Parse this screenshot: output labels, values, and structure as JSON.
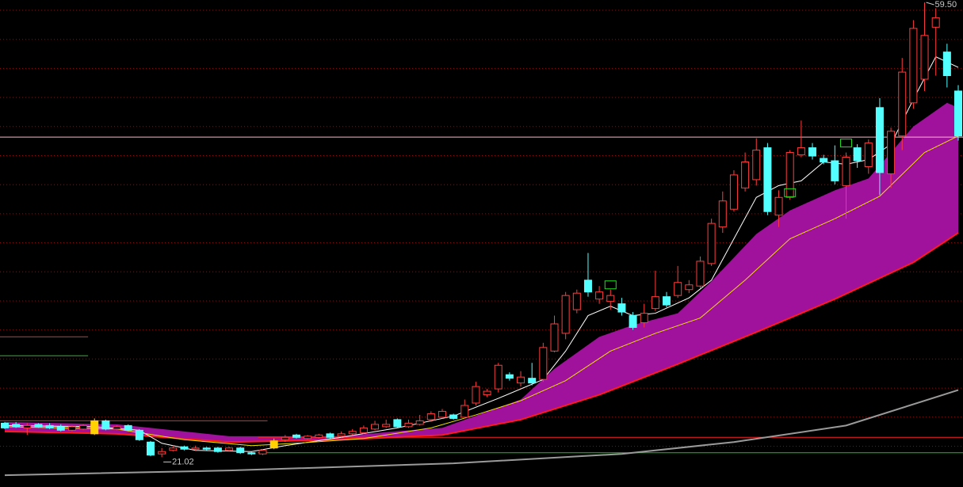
{
  "chart_data": {
    "type": "candlestick",
    "ylim": [
      18.5,
      59.7
    ],
    "up_color": "#ff3c3c",
    "down_color": "#54ffff",
    "highlight_color": "#ffd200",
    "highlight": [
      8,
      24
    ],
    "open": [
      23.9,
      23.8,
      23.5,
      23.8,
      23.7,
      23.6,
      23.3,
      23.4,
      23.0,
      24.1,
      23.4,
      23.7,
      23.3,
      22.3,
      21.3,
      21.6,
      21.9,
      21.7,
      21.8,
      21.8,
      21.6,
      21.8,
      21.4,
      21.3,
      21.8,
      22.5,
      22.9,
      22.6,
      22.7,
      23.0,
      22.8,
      23.0,
      23.1,
      23.4,
      23.6,
      24.2,
      23.6,
      23.8,
      24.2,
      24.4,
      24.6,
      24.4,
      25.6,
      26.3,
      26.8,
      28.0,
      27.3,
      27.7,
      27.6,
      30.0,
      31.5,
      33.5,
      36.0,
      34.4,
      34.2,
      34.0,
      33.0,
      32.4,
      33.6,
      34.6,
      34.7,
      35.2,
      35.5,
      37.4,
      40.5,
      42.0,
      43.8,
      44.5,
      47.2,
      41.5,
      43.0,
      46.6,
      47.2,
      46.3,
      46.1,
      44.0,
      47.2,
      45.6,
      50.6,
      45.0,
      48.2,
      51.0,
      53.0,
      57.4,
      55.3,
      52.0
    ],
    "close": [
      23.5,
      23.6,
      23.7,
      23.6,
      23.5,
      23.3,
      23.6,
      23.7,
      24.1,
      23.4,
      23.6,
      23.3,
      22.5,
      21.2,
      21.5,
      21.8,
      21.7,
      21.8,
      21.7,
      21.5,
      21.8,
      21.4,
      21.3,
      21.6,
      22.4,
      22.7,
      22.7,
      22.8,
      22.9,
      22.7,
      23.0,
      23.2,
      23.5,
      23.8,
      23.8,
      23.6,
      23.9,
      24.1,
      24.7,
      24.9,
      24.3,
      25.4,
      27.0,
      26.6,
      28.8,
      27.7,
      27.8,
      27.3,
      30.3,
      32.3,
      34.7,
      34.9,
      35.0,
      35.0,
      34.7,
      33.3,
      32.0,
      33.2,
      34.6,
      33.9,
      35.8,
      35.6,
      37.6,
      40.8,
      42.7,
      44.9,
      46.0,
      47.0,
      41.8,
      43.0,
      46.8,
      47.2,
      46.5,
      46.0,
      44.4,
      46.4,
      46.1,
      47.6,
      45.1,
      48.6,
      53.6,
      57.3,
      56.7,
      58.2,
      53.3,
      48.2
    ],
    "high": [
      24.0,
      24.0,
      23.9,
      23.9,
      23.9,
      23.8,
      23.7,
      23.8,
      24.3,
      24.2,
      23.7,
      23.8,
      23.4,
      22.4,
      21.8,
      22.0,
      22.0,
      22.0,
      21.9,
      21.9,
      21.9,
      21.9,
      21.5,
      21.7,
      22.6,
      22.9,
      23.0,
      22.9,
      23.0,
      23.1,
      23.2,
      23.4,
      23.7,
      24.1,
      24.2,
      24.3,
      24.2,
      24.6,
      24.9,
      25.1,
      24.7,
      25.9,
      27.4,
      26.8,
      29.0,
      28.2,
      28.3,
      29.0,
      30.7,
      33.0,
      35.0,
      35.2,
      38.3,
      35.5,
      35.2,
      34.5,
      33.3,
      34.0,
      36.8,
      35.0,
      37.2,
      36.0,
      38.0,
      41.2,
      43.5,
      45.3,
      46.8,
      48.0,
      47.6,
      43.6,
      47.0,
      49.5,
      47.6,
      46.6,
      47.4,
      46.8,
      47.5,
      47.9,
      51.4,
      48.9,
      54.8,
      58.0,
      59.5,
      59.0,
      56.0,
      52.5
    ],
    "low": [
      23.4,
      23.5,
      22.9,
      23.5,
      23.4,
      23.2,
      23.2,
      23.3,
      22.9,
      23.3,
      23.3,
      23.2,
      22.4,
      21.1,
      21.02,
      21.5,
      21.6,
      21.6,
      21.6,
      21.4,
      21.5,
      21.3,
      21.2,
      21.2,
      21.7,
      22.3,
      22.6,
      22.5,
      22.6,
      22.6,
      22.7,
      22.9,
      23.0,
      23.3,
      23.5,
      23.5,
      23.5,
      23.7,
      24.0,
      24.3,
      24.2,
      24.3,
      25.4,
      26.1,
      26.5,
      27.5,
      27.0,
      27.1,
      27.4,
      29.9,
      31.0,
      33.2,
      34.6,
      34.0,
      33.5,
      33.0,
      31.8,
      32.0,
      33.4,
      33.7,
      34.5,
      34.9,
      35.3,
      37.2,
      40.0,
      41.8,
      43.5,
      44.0,
      41.5,
      40.5,
      42.8,
      46.4,
      46.2,
      45.8,
      44.1,
      41.2,
      45.5,
      45.0,
      43.2,
      43.8,
      47.0,
      50.5,
      52.0,
      53.3,
      52.3,
      47.8
    ],
    "high_label": "59.50",
    "low_label": "21.02",
    "band": {
      "color": "#a0129c",
      "upper": {
        "x": [
          0,
          10,
          20,
          30,
          36,
          39,
          46,
          49,
          53,
          56,
          60,
          63,
          67,
          70,
          74,
          77,
          81,
          84,
          85
        ],
        "values": [
          24.0,
          23.8,
          22.8,
          22.8,
          23.3,
          23.5,
          25.9,
          28.5,
          31.2,
          32.2,
          33.2,
          35.9,
          39.9,
          41.9,
          43.6,
          44.6,
          49.0,
          51.0,
          50.6
        ]
      },
      "lower": {
        "x": [
          0,
          10,
          20,
          30,
          39,
          46,
          53,
          60,
          67,
          74,
          81,
          85
        ],
        "values": [
          23.2,
          23.0,
          22.3,
          22.5,
          22.9,
          24.2,
          26.3,
          28.9,
          31.6,
          34.4,
          37.5,
          40.0
        ],
        "color": "#ff1a1a"
      }
    },
    "lines": [
      {
        "color": "#ffffff",
        "x": [
          0,
          8,
          12,
          14,
          17,
          22,
          25,
          30,
          35,
          40,
          44,
          48,
          50,
          52,
          54,
          56,
          58,
          61,
          63,
          65,
          67,
          69,
          71,
          73,
          75,
          77,
          79,
          81,
          83,
          85
        ],
        "values": [
          23.7,
          23.6,
          23.3,
          22.2,
          21.6,
          21.5,
          22.0,
          22.7,
          23.5,
          24.5,
          26.0,
          27.6,
          30.0,
          33.0,
          33.8,
          33.0,
          33.2,
          34.5,
          36.0,
          39.5,
          43.0,
          44.0,
          44.4,
          46.0,
          45.8,
          46.2,
          47.5,
          51.3,
          54.9,
          54.0
        ]
      },
      {
        "color": "#e8e000",
        "x": [
          0,
          10,
          16,
          22,
          26,
          32,
          38,
          42,
          46,
          50,
          54,
          58,
          62,
          66,
          70,
          74,
          78,
          82,
          85
        ],
        "values": [
          23.6,
          23.4,
          22.5,
          22.0,
          22.2,
          22.6,
          23.5,
          24.6,
          25.8,
          27.5,
          30.0,
          31.5,
          32.8,
          36.0,
          39.5,
          41.2,
          43.1,
          46.8,
          48.2
        ]
      },
      {
        "color": "#9a9a9a",
        "x": [
          0,
          20,
          40,
          55,
          65,
          75,
          85
        ],
        "values": [
          19.5,
          19.9,
          20.5,
          21.3,
          22.3,
          23.7,
          26.7
        ]
      }
    ],
    "levels": [
      {
        "value": 48.1,
        "color": "#ffb4c8",
        "start": 0,
        "end": 85
      },
      {
        "value": 22.7,
        "color": "#ff2020",
        "start": 23,
        "end": 85
      },
      {
        "value": 21.4,
        "color": "#20c020",
        "start": 23,
        "end": 85
      },
      {
        "value": 24.1,
        "color": "#ff2020",
        "start": 0,
        "end": 23
      },
      {
        "value": 31.2,
        "color": "#ff2020",
        "start": 0,
        "end": 7
      },
      {
        "value": 29.6,
        "color": "#20c020",
        "start": 0,
        "end": 7
      }
    ],
    "signals": {
      "color": "#20e020",
      "x": [
        54,
        70,
        75
      ],
      "values": [
        35.6,
        43.4,
        47.6
      ]
    }
  }
}
